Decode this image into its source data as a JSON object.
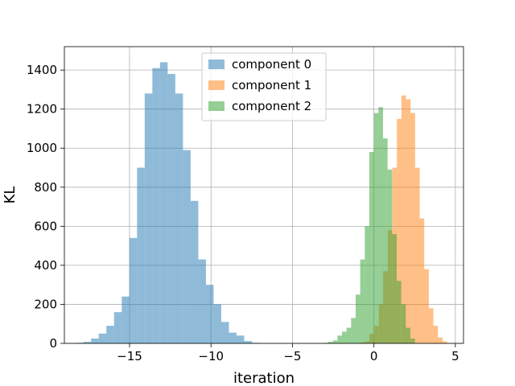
{
  "chart_data": {
    "type": "bar",
    "xlabel": "iteration",
    "ylabel": "KL",
    "xlim": [
      -19.0,
      5.5
    ],
    "ylim": [
      0,
      1520
    ],
    "x_ticks": [
      -15,
      -10,
      -5,
      0,
      5
    ],
    "x_tick_labels": [
      "−15",
      "−10",
      "−5",
      "0",
      "5"
    ],
    "y_ticks": [
      0,
      200,
      400,
      600,
      800,
      1000,
      1200,
      1400
    ],
    "y_tick_labels": [
      "0",
      "200",
      "400",
      "600",
      "800",
      "1000",
      "1200",
      "1400"
    ],
    "grid": true,
    "legend_position": "top-center",
    "series": [
      {
        "name": "component 0",
        "color": "#1f77b4",
        "opacity": 0.5,
        "bin_edges": [
          -18.3,
          -17.83,
          -17.36,
          -16.89,
          -16.42,
          -15.95,
          -15.48,
          -15.01,
          -14.54,
          -14.07,
          -13.6,
          -13.13,
          -12.66,
          -12.19,
          -11.72,
          -11.25,
          -10.78,
          -10.31,
          -9.84,
          -9.37,
          -8.9,
          -8.43,
          -7.96,
          -7.49,
          -7.02
        ],
        "counts": [
          3,
          8,
          25,
          50,
          90,
          160,
          240,
          540,
          900,
          1280,
          1410,
          1440,
          1380,
          1280,
          990,
          730,
          430,
          300,
          200,
          110,
          55,
          40,
          12,
          3
        ]
      },
      {
        "name": "component 1",
        "color": "#ff7f0e",
        "opacity": 0.5,
        "bin_edges": [
          -0.83,
          -0.55,
          -0.27,
          0.01,
          0.29,
          0.57,
          0.85,
          1.13,
          1.41,
          1.69,
          1.97,
          2.25,
          2.53,
          2.81,
          3.09,
          3.37,
          3.65,
          3.93,
          4.21,
          4.49
        ],
        "counts": [
          5,
          10,
          50,
          90,
          200,
          370,
          580,
          900,
          1150,
          1270,
          1250,
          1180,
          900,
          640,
          380,
          180,
          90,
          30,
          10
        ]
      },
      {
        "name": "component 2",
        "color": "#2ca02c",
        "opacity": 0.5,
        "bin_edges": [
          -3.08,
          -2.8,
          -2.52,
          -2.24,
          -1.96,
          -1.68,
          -1.4,
          -1.12,
          -0.84,
          -0.56,
          -0.28,
          0.0,
          0.28,
          0.56,
          0.84,
          1.12,
          1.4,
          1.68,
          1.96,
          2.24,
          2.52
        ],
        "counts": [
          3,
          8,
          15,
          40,
          60,
          80,
          130,
          250,
          430,
          600,
          980,
          1180,
          1210,
          1050,
          890,
          560,
          320,
          200,
          80,
          25
        ]
      }
    ]
  }
}
